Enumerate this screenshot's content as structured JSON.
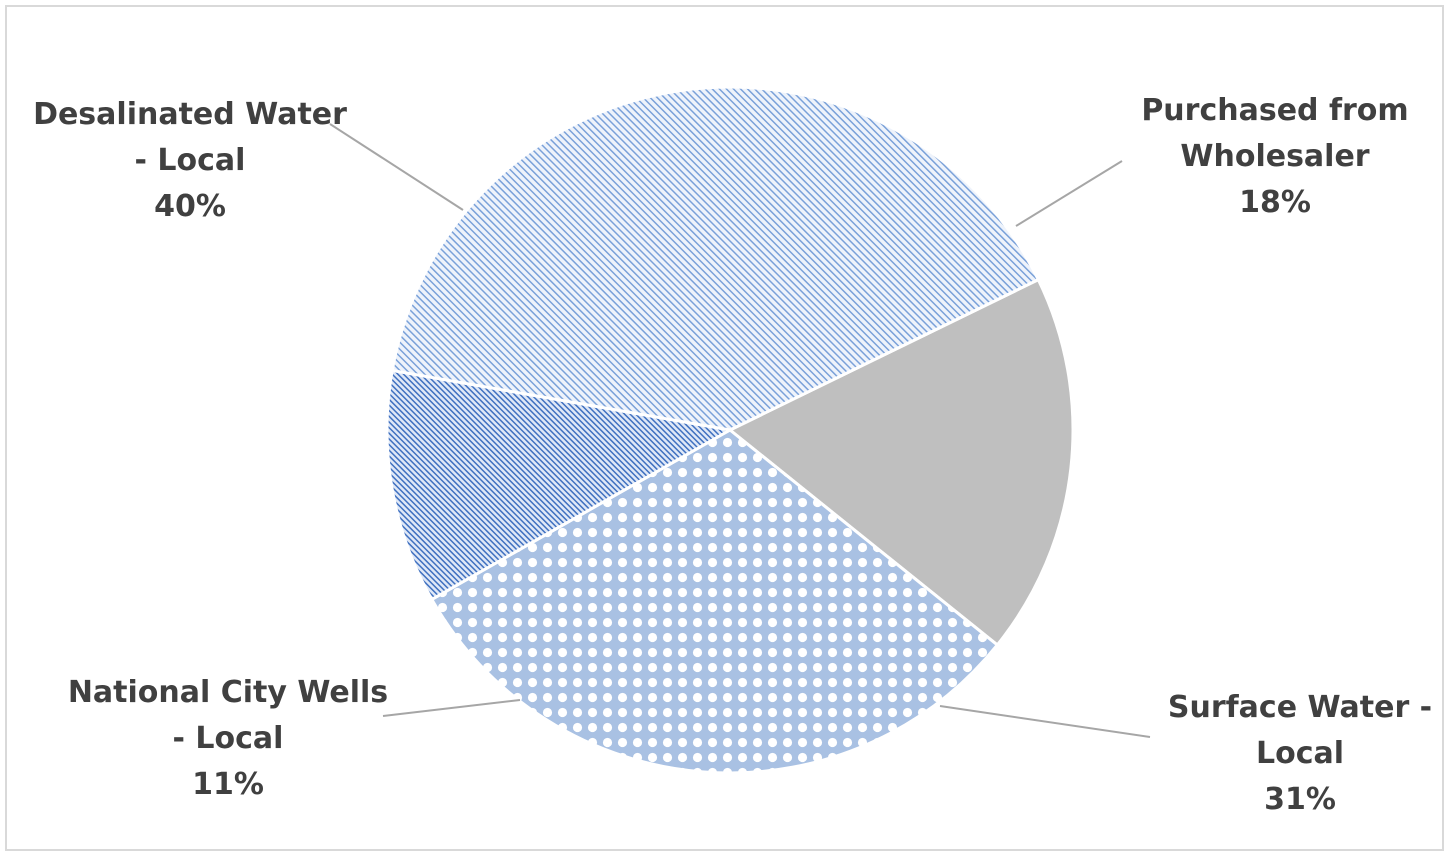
{
  "chart_data": {
    "type": "pie",
    "title": "",
    "slices": [
      {
        "name": "Purchased from Wholesaler",
        "label_lines": [
          "Purchased from",
          "Wholesaler"
        ],
        "value": 18,
        "percent_label": "18%",
        "color": "#bfbfbf",
        "fill_style": "solid"
      },
      {
        "name": "Surface Water - Local",
        "label_lines": [
          "Surface Water -",
          "Local"
        ],
        "value": 31,
        "percent_label": "31%",
        "color": "#a9c1e3",
        "fill_style": "dotted-grid"
      },
      {
        "name": "National City Wells - Local",
        "label_lines": [
          "National City Wells",
          "- Local"
        ],
        "value": 11,
        "percent_label": "11%",
        "color": "#4a7cc9",
        "fill_style": "dense-diagonal"
      },
      {
        "name": "Desalinated Water - Local",
        "label_lines": [
          "Desalinated Water",
          "- Local"
        ],
        "value": 40,
        "percent_label": "40%",
        "color": "#7aa1d9",
        "fill_style": "light-diagonal"
      }
    ],
    "legend": "none",
    "data_labels": "outside-with-leader-lines"
  }
}
